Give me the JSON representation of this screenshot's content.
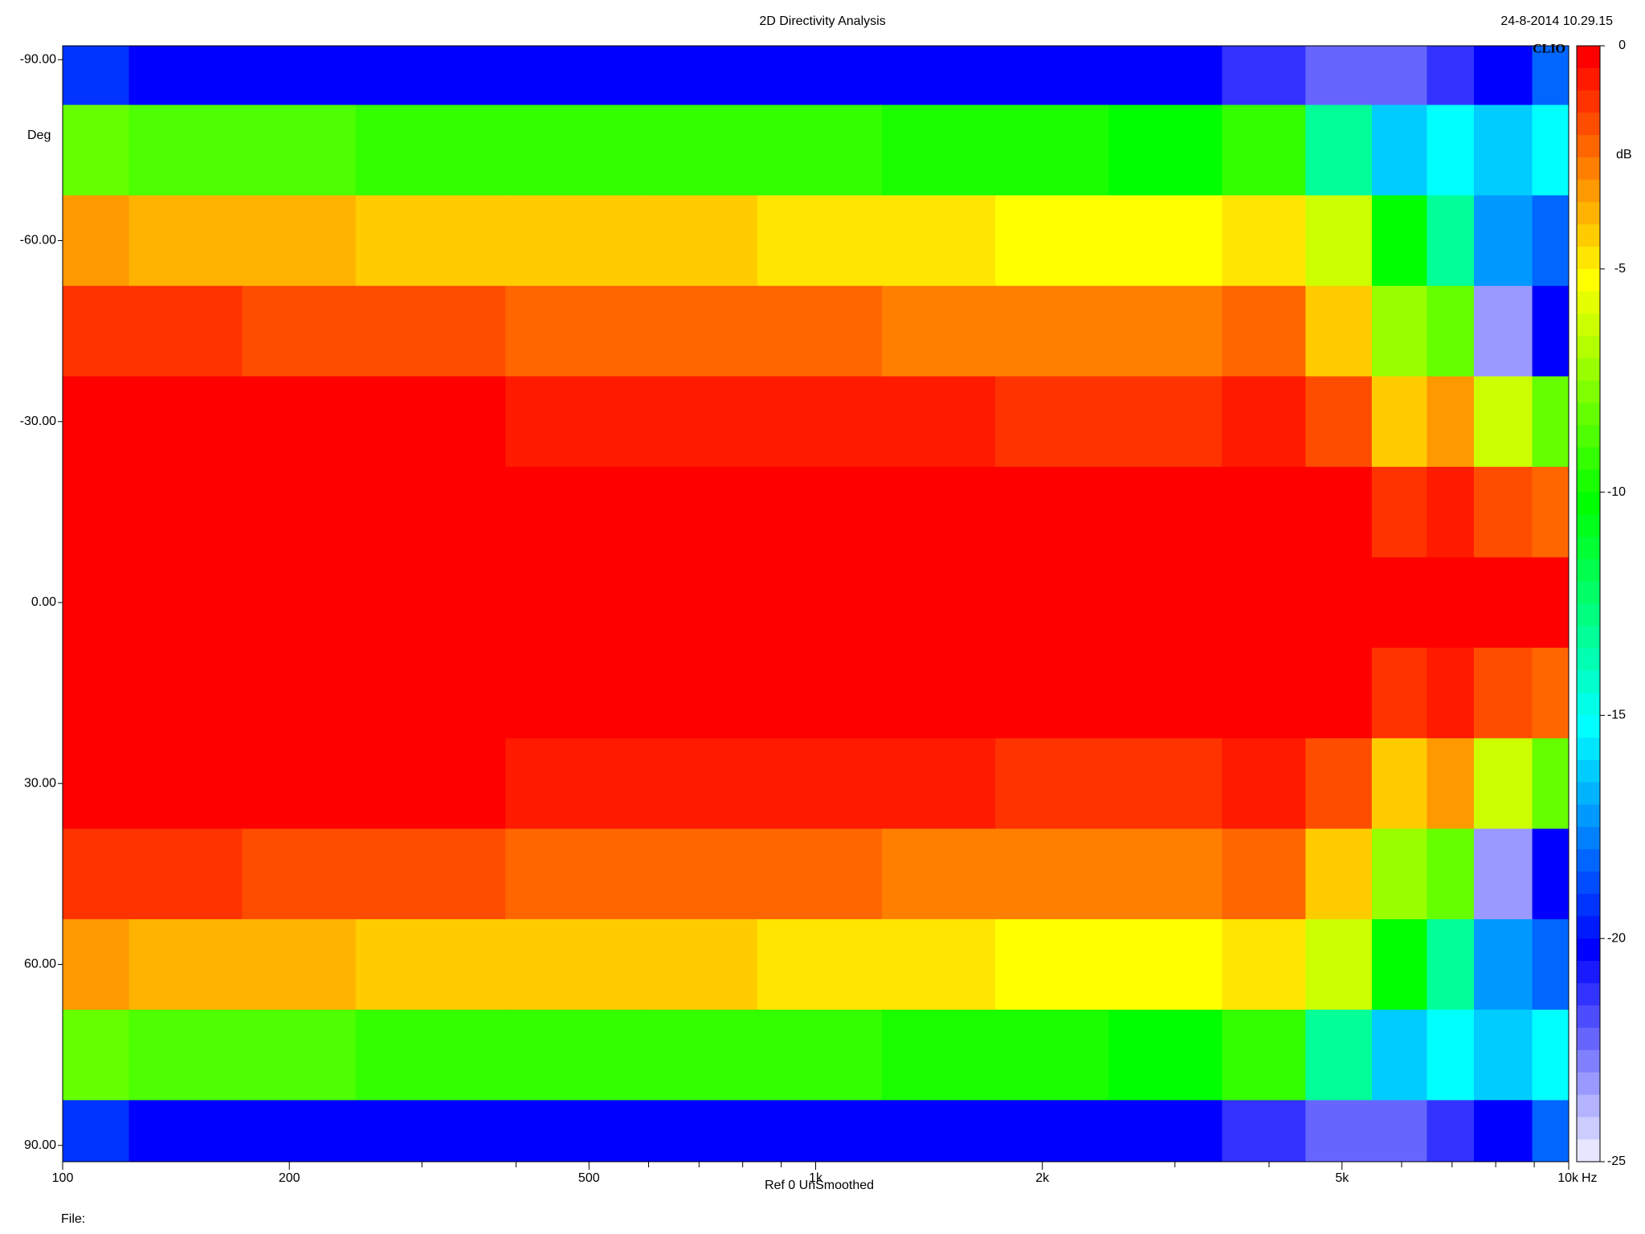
{
  "chart_data": {
    "type": "heatmap",
    "title": "2D Directivity Analysis",
    "timestamp": "24-8-2014 10.29.15",
    "brand": "CLIO",
    "y_label": "Deg",
    "x_unit": "Hz",
    "colorbar_label": "dB",
    "footer": "Ref 0  UnSmoothed",
    "file_label": "File:",
    "x_log": true,
    "x": [
      100,
      150,
      200,
      300,
      500,
      700,
      1000,
      1500,
      2000,
      3000,
      4000,
      5000,
      6000,
      7000,
      8000,
      10000
    ],
    "y": [
      -90,
      -75,
      -60,
      -45,
      -30,
      -15,
      0,
      15,
      30,
      45,
      60,
      75,
      90
    ],
    "z": [
      [
        -19,
        -20,
        -20,
        -20,
        -20,
        -20,
        -20,
        -20,
        -20,
        -20,
        -21,
        -22,
        -22,
        -21,
        -20,
        -18
      ],
      [
        -8,
        -8.5,
        -8.8,
        -9,
        -9,
        -9.2,
        -9.3,
        -9.5,
        -9.8,
        -10,
        -9,
        -13,
        -16,
        -15,
        -16,
        -15
      ],
      [
        -3,
        -3.5,
        -3.8,
        -4,
        -4.2,
        -4.3,
        -4.5,
        -4.7,
        -5,
        -5.2,
        -4.5,
        -6,
        -10,
        -13,
        -17,
        -18
      ],
      [
        -1,
        -1.2,
        -1.5,
        -1.8,
        -2,
        -2.2,
        -2.4,
        -2.6,
        -2.8,
        -2.8,
        -2,
        -4,
        -7,
        -8,
        -23,
        -20
      ],
      [
        0,
        0,
        -0.2,
        -0.4,
        -0.5,
        -0.6,
        -0.7,
        -0.8,
        -1,
        -1,
        -0.5,
        -1.5,
        -4,
        -3,
        -6,
        -8
      ],
      [
        0,
        0,
        0,
        0,
        0,
        0,
        0,
        -0.1,
        -0.2,
        -0.2,
        -0.1,
        -0.3,
        -1,
        -0.8,
        -1.5,
        -2
      ],
      [
        0,
        0,
        0,
        0,
        0,
        0,
        0,
        0,
        0,
        0,
        0,
        0,
        0,
        0,
        0,
        0
      ],
      [
        0,
        0,
        0,
        0,
        0,
        0,
        0,
        -0.1,
        -0.2,
        -0.2,
        -0.1,
        -0.3,
        -1,
        -0.8,
        -1.5,
        -2
      ],
      [
        0,
        0,
        -0.2,
        -0.4,
        -0.5,
        -0.6,
        -0.7,
        -0.8,
        -1,
        -1,
        -0.5,
        -1.5,
        -4,
        -3,
        -6,
        -8
      ],
      [
        -1,
        -1.2,
        -1.5,
        -1.8,
        -2,
        -2.2,
        -2.4,
        -2.6,
        -2.8,
        -2.8,
        -2,
        -4,
        -7,
        -8,
        -23,
        -20
      ],
      [
        -3,
        -3.5,
        -3.8,
        -4,
        -4.2,
        -4.3,
        -4.5,
        -4.7,
        -5,
        -5.2,
        -4.5,
        -6,
        -10,
        -13,
        -17,
        -18
      ],
      [
        -8,
        -8.5,
        -8.8,
        -9,
        -9,
        -9.2,
        -9.3,
        -9.5,
        -9.8,
        -10,
        -9,
        -13,
        -16,
        -15,
        -16,
        -15
      ],
      [
        -19,
        -20,
        -20,
        -20,
        -20,
        -20,
        -20,
        -20,
        -20,
        -20,
        -21,
        -22,
        -22,
        -21,
        -20,
        -18
      ]
    ],
    "xlim": [
      100,
      10000
    ],
    "xticks": [
      100,
      200,
      500,
      {
        "value": 1000,
        "label": "1k"
      },
      {
        "value": 2000,
        "label": "2k"
      },
      {
        "value": 5000,
        "label": "5k"
      },
      {
        "value": 10000,
        "label": "10k"
      }
    ],
    "xminor": [
      300,
      400,
      600,
      700,
      800,
      900,
      3000,
      4000,
      6000,
      7000,
      8000,
      9000
    ],
    "ylim": [
      -92.3,
      92.7
    ],
    "yticks": [
      {
        "value": -90,
        "label": "-90.00"
      },
      {
        "value": -60,
        "label": "-60.00"
      },
      {
        "value": -30,
        "label": "-30.00"
      },
      {
        "value": 0,
        "label": "0.00"
      },
      {
        "value": 30,
        "label": "30.00"
      },
      {
        "value": 60,
        "label": "60.00"
      },
      {
        "value": 90,
        "label": "90.00"
      }
    ],
    "zlim": [
      -25,
      0
    ],
    "zticks": [
      0,
      -5,
      -10,
      -15,
      -20,
      -25
    ],
    "colormap": [
      [
        0,
        "#ff0000"
      ],
      [
        -2.5,
        "#ff8000"
      ],
      [
        -5,
        "#ffff00"
      ],
      [
        -10,
        "#00ff00"
      ],
      [
        -15,
        "#00ffff"
      ],
      [
        -20,
        "#0000ff"
      ],
      [
        -25,
        "#ffffff"
      ]
    ],
    "color_step": 0.5
  }
}
